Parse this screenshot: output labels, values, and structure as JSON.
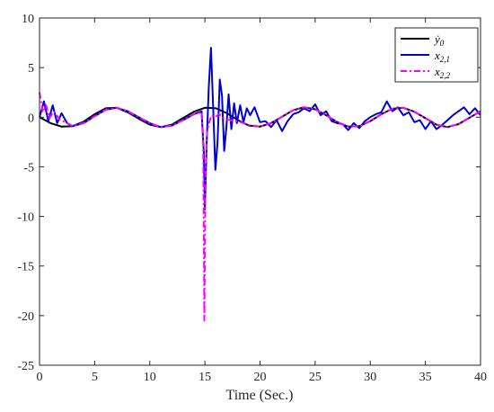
{
  "chart_data": {
    "type": "line",
    "title": "",
    "xlabel": "Time (Sec.)",
    "ylabel": "",
    "xlim": [
      0,
      40
    ],
    "ylim": [
      -25,
      10
    ],
    "x_ticks": [
      "0",
      "5",
      "10",
      "15",
      "20",
      "25",
      "30",
      "35",
      "40"
    ],
    "y_ticks": [
      "10",
      "5",
      "0",
      "-5",
      "-10",
      "-15",
      "-20",
      "-25"
    ],
    "grid": false,
    "legend_position": "top-right",
    "series": [
      {
        "name": "ẏ0",
        "legend_main": "ẏ",
        "legend_sub": "0",
        "color": "#000000",
        "style": "solid",
        "points": [
          [
            0,
            0.0
          ],
          [
            1,
            -0.6
          ],
          [
            2,
            -0.95
          ],
          [
            3,
            -0.9
          ],
          [
            4,
            -0.45
          ],
          [
            5,
            0.3
          ],
          [
            6,
            0.9
          ],
          [
            7,
            0.95
          ],
          [
            8,
            0.5
          ],
          [
            9,
            -0.15
          ],
          [
            10,
            -0.75
          ],
          [
            11,
            -1.0
          ],
          [
            12,
            -0.75
          ],
          [
            13,
            -0.1
          ],
          [
            14,
            0.55
          ],
          [
            15,
            0.95
          ],
          [
            16,
            0.9
          ],
          [
            17,
            0.4
          ],
          [
            18,
            -0.3
          ],
          [
            19,
            -0.85
          ],
          [
            20,
            -0.95
          ],
          [
            21,
            -0.6
          ],
          [
            22,
            0.05
          ],
          [
            23,
            0.7
          ],
          [
            24,
            1.0
          ],
          [
            25,
            0.8
          ],
          [
            26,
            0.2
          ],
          [
            27,
            -0.5
          ],
          [
            28,
            -0.95
          ],
          [
            29,
            -0.9
          ],
          [
            30,
            -0.4
          ],
          [
            31,
            0.3
          ],
          [
            32,
            0.85
          ],
          [
            33,
            0.95
          ],
          [
            34,
            0.55
          ],
          [
            35,
            -0.1
          ],
          [
            36,
            -0.75
          ],
          [
            37,
            -1.0
          ],
          [
            38,
            -0.7
          ],
          [
            39,
            -0.05
          ],
          [
            40,
            0.6
          ]
        ]
      },
      {
        "name": "x2,1",
        "legend_main": "x",
        "legend_sub": "2,1",
        "color": "#0000d0",
        "style": "solid",
        "points": [
          [
            0,
            0.0
          ],
          [
            0.4,
            1.6
          ],
          [
            0.8,
            -0.4
          ],
          [
            1.2,
            1.2
          ],
          [
            1.6,
            -0.6
          ],
          [
            2,
            0.4
          ],
          [
            2.5,
            -0.6
          ],
          [
            3,
            -0.9
          ],
          [
            4,
            -0.6
          ],
          [
            5,
            0.1
          ],
          [
            6,
            0.75
          ],
          [
            7,
            0.95
          ],
          [
            8,
            0.6
          ],
          [
            9,
            0.0
          ],
          [
            10,
            -0.6
          ],
          [
            11,
            -1.0
          ],
          [
            12,
            -0.85
          ],
          [
            13,
            -0.3
          ],
          [
            14,
            0.3
          ],
          [
            14.7,
            0.6
          ],
          [
            14.9,
            -3.5
          ],
          [
            15.0,
            -9.3
          ],
          [
            15.15,
            -3.0
          ],
          [
            15.35,
            3.0
          ],
          [
            15.55,
            7.0
          ],
          [
            15.75,
            1.0
          ],
          [
            15.95,
            -5.3
          ],
          [
            16.15,
            -2.5
          ],
          [
            16.35,
            3.8
          ],
          [
            16.55,
            2.2
          ],
          [
            16.75,
            -3.4
          ],
          [
            16.95,
            -1.0
          ],
          [
            17.15,
            2.3
          ],
          [
            17.4,
            -1.2
          ],
          [
            17.65,
            1.4
          ],
          [
            17.9,
            -0.6
          ],
          [
            18.2,
            1.2
          ],
          [
            18.5,
            -0.5
          ],
          [
            18.8,
            0.9
          ],
          [
            19.1,
            0.2
          ],
          [
            19.5,
            1.0
          ],
          [
            20,
            -0.5
          ],
          [
            20.5,
            -0.4
          ],
          [
            21,
            -1.0
          ],
          [
            21.5,
            -0.3
          ],
          [
            22,
            -1.4
          ],
          [
            22.5,
            -0.4
          ],
          [
            23,
            0.3
          ],
          [
            23.5,
            0.5
          ],
          [
            24,
            0.9
          ],
          [
            24.5,
            0.6
          ],
          [
            25,
            1.3
          ],
          [
            25.5,
            0.2
          ],
          [
            26,
            0.6
          ],
          [
            26.5,
            -0.4
          ],
          [
            27,
            -0.6
          ],
          [
            27.5,
            -0.7
          ],
          [
            28,
            -1.3
          ],
          [
            28.5,
            -0.6
          ],
          [
            29,
            -1.1
          ],
          [
            29.5,
            -0.4
          ],
          [
            30,
            0.0
          ],
          [
            30.5,
            0.3
          ],
          [
            31,
            0.5
          ],
          [
            31.5,
            1.6
          ],
          [
            32,
            0.6
          ],
          [
            32.5,
            1.0
          ],
          [
            33,
            0.2
          ],
          [
            33.5,
            0.5
          ],
          [
            34,
            -0.5
          ],
          [
            34.5,
            -0.3
          ],
          [
            35,
            -1.2
          ],
          [
            35.5,
            -0.4
          ],
          [
            36,
            -1.2
          ],
          [
            36.5,
            -0.8
          ],
          [
            37,
            -0.3
          ],
          [
            37.5,
            0.2
          ],
          [
            38,
            0.6
          ],
          [
            38.5,
            1.0
          ],
          [
            39,
            0.3
          ],
          [
            39.5,
            0.9
          ],
          [
            40,
            0.2
          ]
        ]
      },
      {
        "name": "x2,2",
        "legend_main": "x",
        "legend_sub": "2,2",
        "color": "#ff00ff",
        "style": "dashdot",
        "points": [
          [
            0,
            2.5
          ],
          [
            0.3,
            0.5
          ],
          [
            0.6,
            1.2
          ],
          [
            0.9,
            -0.1
          ],
          [
            1.3,
            0.6
          ],
          [
            1.8,
            -0.2
          ],
          [
            2.5,
            -0.6
          ],
          [
            3,
            -0.9
          ],
          [
            4,
            -0.6
          ],
          [
            5,
            0.1
          ],
          [
            6,
            0.75
          ],
          [
            7,
            0.95
          ],
          [
            8,
            0.6
          ],
          [
            9,
            0.0
          ],
          [
            10,
            -0.6
          ],
          [
            11,
            -1.0
          ],
          [
            12,
            -0.85
          ],
          [
            13,
            -0.3
          ],
          [
            14,
            0.3
          ],
          [
            14.7,
            0.5
          ],
          [
            14.85,
            -3.0
          ],
          [
            14.95,
            -20.5
          ],
          [
            15.05,
            -6.0
          ],
          [
            15.2,
            -1.5
          ],
          [
            15.4,
            -0.5
          ],
          [
            15.6,
            0.2
          ],
          [
            15.9,
            0.0
          ],
          [
            16.3,
            0.3
          ],
          [
            16.8,
            -0.2
          ],
          [
            17.3,
            -0.3
          ],
          [
            18,
            -0.4
          ],
          [
            19,
            -0.8
          ],
          [
            20,
            -0.95
          ],
          [
            21,
            -0.6
          ],
          [
            22,
            0.05
          ],
          [
            23,
            0.7
          ],
          [
            24,
            1.0
          ],
          [
            25,
            0.8
          ],
          [
            26,
            0.2
          ],
          [
            27,
            -0.5
          ],
          [
            28,
            -0.95
          ],
          [
            29,
            -0.9
          ],
          [
            30,
            -0.4
          ],
          [
            31,
            0.3
          ],
          [
            32,
            0.85
          ],
          [
            33,
            0.95
          ],
          [
            34,
            0.55
          ],
          [
            35,
            -0.1
          ],
          [
            36,
            -0.75
          ],
          [
            37,
            -1.0
          ],
          [
            38,
            -0.7
          ],
          [
            39,
            -0.05
          ],
          [
            40,
            0.6
          ]
        ]
      }
    ]
  }
}
